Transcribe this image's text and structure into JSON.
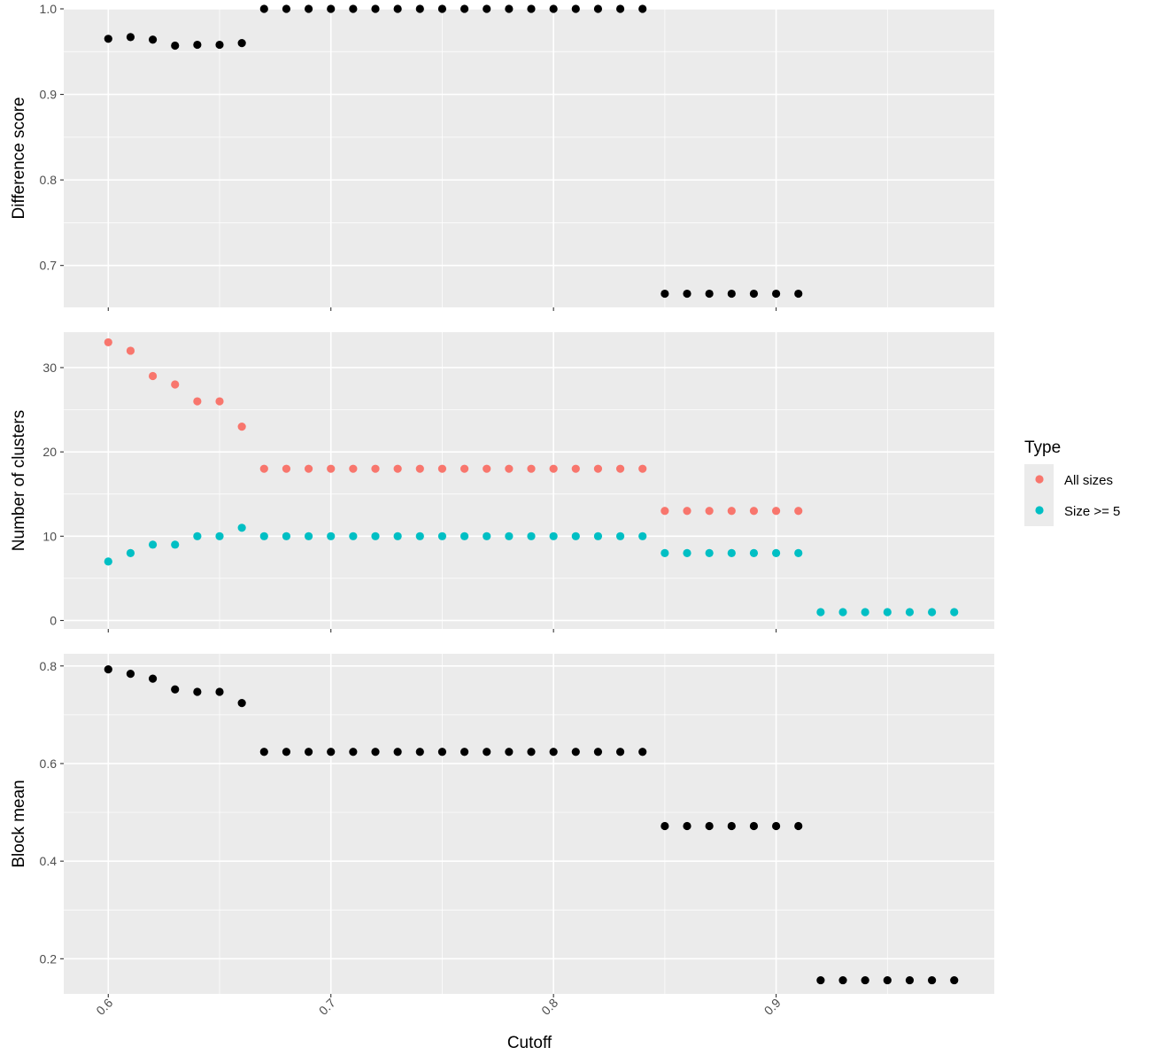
{
  "chart_data": {
    "type": "scatter",
    "x_label": "Cutoff",
    "x_ticks": [
      "0.6",
      "0.7",
      "0.8",
      "0.9"
    ],
    "x_tick_values": [
      0.6,
      0.7,
      0.8,
      0.9
    ],
    "xlim": [
      0.58,
      0.998
    ],
    "panels": [
      {
        "ylabel": "Difference score",
        "ylim": [
          0.651,
          1.0
        ],
        "y_ticks": [
          "0.7",
          "0.8",
          "0.9",
          "1.0"
        ],
        "y_tick_values": [
          0.7,
          0.8,
          0.9,
          1.0
        ],
        "grid": true,
        "series": [
          {
            "color": "#000000",
            "x": [
              0.6,
              0.61,
              0.62,
              0.63,
              0.64,
              0.65,
              0.66,
              0.67,
              0.68,
              0.69,
              0.7,
              0.71,
              0.72,
              0.73,
              0.74,
              0.75,
              0.76,
              0.77,
              0.78,
              0.79,
              0.8,
              0.81,
              0.82,
              0.83,
              0.84,
              0.85,
              0.86,
              0.87,
              0.88,
              0.89,
              0.9,
              0.91
            ],
            "y": [
              0.965,
              0.967,
              0.964,
              0.957,
              0.958,
              0.958,
              0.96,
              1.0,
              1.0,
              1.0,
              1.0,
              1.0,
              1.0,
              1.0,
              1.0,
              1.0,
              1.0,
              1.0,
              1.0,
              1.0,
              1.0,
              1.0,
              1.0,
              1.0,
              1.0,
              0.667,
              0.667,
              0.667,
              0.667,
              0.667,
              0.667,
              0.667
            ]
          }
        ]
      },
      {
        "ylabel": "Number of clusters",
        "ylim": [
          -1.0,
          34.2
        ],
        "y_ticks": [
          "0",
          "10",
          "20",
          "30"
        ],
        "y_tick_values": [
          0,
          10,
          20,
          30
        ],
        "grid": true,
        "series": [
          {
            "name": "All sizes",
            "color": "#F8766D",
            "x": [
              0.6,
              0.61,
              0.62,
              0.63,
              0.64,
              0.65,
              0.66,
              0.67,
              0.68,
              0.69,
              0.7,
              0.71,
              0.72,
              0.73,
              0.74,
              0.75,
              0.76,
              0.77,
              0.78,
              0.79,
              0.8,
              0.81,
              0.82,
              0.83,
              0.84,
              0.85,
              0.86,
              0.87,
              0.88,
              0.89,
              0.9,
              0.91
            ],
            "y": [
              33,
              32,
              29,
              28,
              26,
              26,
              23,
              18,
              18,
              18,
              18,
              18,
              18,
              18,
              18,
              18,
              18,
              18,
              18,
              18,
              18,
              18,
              18,
              18,
              18,
              13,
              13,
              13,
              13,
              13,
              13,
              13
            ]
          },
          {
            "name": "Size >= 5",
            "color": "#00BFC4",
            "x": [
              0.6,
              0.61,
              0.62,
              0.63,
              0.64,
              0.65,
              0.66,
              0.67,
              0.68,
              0.69,
              0.7,
              0.71,
              0.72,
              0.73,
              0.74,
              0.75,
              0.76,
              0.77,
              0.78,
              0.79,
              0.8,
              0.81,
              0.82,
              0.83,
              0.84,
              0.85,
              0.86,
              0.87,
              0.88,
              0.89,
              0.9,
              0.91,
              0.92,
              0.93,
              0.94,
              0.95,
              0.96,
              0.97,
              0.98
            ],
            "y": [
              7,
              8,
              9,
              9,
              10,
              10,
              11,
              10,
              10,
              10,
              10,
              10,
              10,
              10,
              10,
              10,
              10,
              10,
              10,
              10,
              10,
              10,
              10,
              10,
              10,
              8,
              8,
              8,
              8,
              8,
              8,
              8,
              1,
              1,
              1,
              1,
              1,
              1,
              1
            ]
          }
        ]
      },
      {
        "ylabel": "Block mean",
        "ylim": [
          0.128,
          0.825
        ],
        "y_ticks": [
          "0.2",
          "0.4",
          "0.6",
          "0.8"
        ],
        "y_tick_values": [
          0.2,
          0.4,
          0.6,
          0.8
        ],
        "grid": true,
        "series": [
          {
            "color": "#000000",
            "x": [
              0.6,
              0.61,
              0.62,
              0.63,
              0.64,
              0.65,
              0.66,
              0.67,
              0.68,
              0.69,
              0.7,
              0.71,
              0.72,
              0.73,
              0.74,
              0.75,
              0.76,
              0.77,
              0.78,
              0.79,
              0.8,
              0.81,
              0.82,
              0.83,
              0.84,
              0.85,
              0.86,
              0.87,
              0.88,
              0.89,
              0.9,
              0.91,
              0.92,
              0.93,
              0.94,
              0.95,
              0.96,
              0.97,
              0.98
            ],
            "y": [
              0.793,
              0.784,
              0.774,
              0.752,
              0.747,
              0.747,
              0.724,
              0.624,
              0.624,
              0.624,
              0.624,
              0.624,
              0.624,
              0.624,
              0.624,
              0.624,
              0.624,
              0.624,
              0.624,
              0.624,
              0.624,
              0.624,
              0.624,
              0.624,
              0.624,
              0.472,
              0.472,
              0.472,
              0.472,
              0.472,
              0.472,
              0.472,
              0.156,
              0.156,
              0.156,
              0.156,
              0.156,
              0.156,
              0.156
            ]
          }
        ]
      }
    ],
    "legend": {
      "title": "Type",
      "position": "right",
      "entries": [
        {
          "label": "All sizes",
          "color": "#F8766D"
        },
        {
          "label": "Size >= 5",
          "color": "#00BFC4"
        }
      ]
    }
  }
}
